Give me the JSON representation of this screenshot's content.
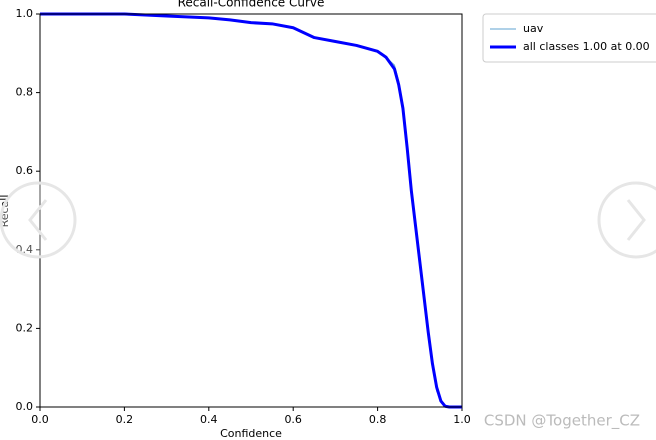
{
  "chart_data": {
    "type": "line",
    "title": "Recall-Confidence Curve",
    "x_label": "Confidence",
    "y_label": "Recall",
    "x": [
      0,
      0.1,
      0.2,
      0.3,
      0.4,
      0.45,
      0.5,
      0.55,
      0.6,
      0.65,
      0.7,
      0.75,
      0.8,
      0.82,
      0.84,
      0.85,
      0.86,
      0.87,
      0.88,
      0.89,
      0.9,
      0.91,
      0.92,
      0.93,
      0.94,
      0.95,
      0.96,
      0.97,
      1.0
    ],
    "series": [
      {
        "name": "uav",
        "color": "#5fa3d0",
        "width": 1,
        "values": [
          1,
          1,
          1,
          0.995,
          0.99,
          0.985,
          0.978,
          0.975,
          0.965,
          0.94,
          0.93,
          0.92,
          0.905,
          0.89,
          0.87,
          0.83,
          0.77,
          0.66,
          0.55,
          0.46,
          0.37,
          0.28,
          0.19,
          0.11,
          0.04,
          0.02,
          0.002,
          0,
          0
        ]
      },
      {
        "name": "all classes 1.00 at 0.00",
        "color": "#0000ff",
        "width": 3,
        "values": [
          1,
          1,
          1,
          0.995,
          0.99,
          0.985,
          0.978,
          0.975,
          0.965,
          0.94,
          0.93,
          0.92,
          0.905,
          0.89,
          0.86,
          0.82,
          0.76,
          0.66,
          0.55,
          0.46,
          0.37,
          0.28,
          0.19,
          0.11,
          0.05,
          0.015,
          0.002,
          0,
          0
        ]
      }
    ],
    "xlim": [
      0,
      1
    ],
    "ylim": [
      0,
      1
    ],
    "xticks": [
      {
        "value": 0,
        "label": "0.0"
      },
      0.2,
      0.4,
      0.6,
      0.8,
      {
        "value": 1,
        "label": "1.0"
      }
    ],
    "yticks": [
      {
        "value": 0,
        "label": "0.0"
      },
      0.2,
      0.4,
      0.6,
      0.8,
      {
        "value": 1,
        "label": "1.0"
      }
    ],
    "grid": false,
    "legend": "outside-right"
  },
  "watermark": "CSDN @Together_CZ"
}
